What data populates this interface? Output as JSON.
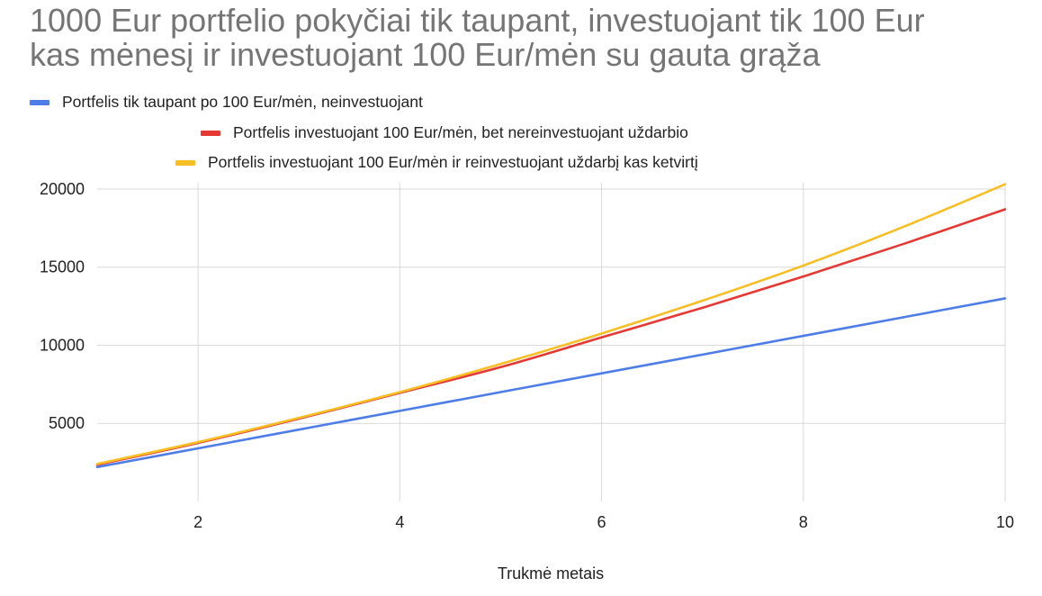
{
  "chart_data": {
    "type": "line",
    "title": "1000 Eur portfelio pokyčiai tik taupant, investuojant tik 100 Eur\nkas mėnesį ir investuojant 100 Eur/mėn su gauta grąža",
    "xlabel": "Trukmė metais",
    "ylabel": "",
    "xlim": [
      1,
      10
    ],
    "ylim": [
      0,
      20400
    ],
    "xticks": [
      2,
      4,
      6,
      8,
      10
    ],
    "yticks": [
      5000,
      10000,
      15000,
      20000
    ],
    "grid": true,
    "legend_position": "top",
    "x": [
      1,
      2,
      3,
      4,
      5,
      6,
      7,
      8,
      9,
      10
    ],
    "series": [
      {
        "name": "Portfelis tik taupant po 100 Eur/mėn, neinvestuojant",
        "color": "#4f7de8",
        "values": [
          2200,
          3400,
          4600,
          5800,
          7000,
          8200,
          9400,
          10600,
          11800,
          13000
        ]
      },
      {
        "name": "Portfelis investuojant 100 Eur/mėn, bet nereinvestuojant uždarbio",
        "color": "#e53935",
        "values": [
          2350,
          3750,
          5300,
          6950,
          8600,
          10500,
          12400,
          14400,
          16500,
          18700
        ]
      },
      {
        "name": "Portfelis investuojant 100 Eur/mėn ir reinvestuojant uždarbį kas ketvirtį",
        "color": "#f6bf26",
        "values": [
          2400,
          3800,
          5350,
          7000,
          8800,
          10750,
          12850,
          15100,
          17600,
          20300
        ]
      }
    ]
  }
}
